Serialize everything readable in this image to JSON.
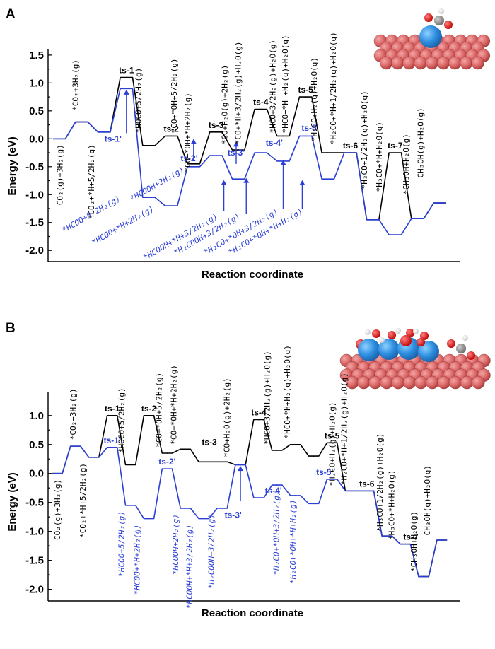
{
  "chart_data": [
    {
      "type": "line",
      "panel_label": "A",
      "xlabel": "Reaction coordinate",
      "ylabel": "Energy (eV)",
      "ylim": [
        -2.2,
        1.6
      ],
      "yticks": [
        "1.5",
        "1.0",
        "0.5",
        "0.0",
        "-0.5",
        "-1.0",
        "-1.5",
        "-2.0"
      ],
      "grid": false,
      "colors": {
        "black": "#000000",
        "blue": "#2b3fd6"
      },
      "series": [
        {
          "color": "#000000",
          "levels": [
            0.0,
            0.3,
            0.12,
            1.1,
            -0.12,
            0.05,
            -0.45,
            0.12,
            -0.2,
            0.53,
            0.05,
            0.75,
            -0.25,
            -0.25,
            -1.45,
            -0.25,
            -1.43,
            -1.15
          ]
        },
        {
          "color": "#2b3fd6",
          "levels": [
            0.0,
            0.3,
            0.12,
            0.9,
            -1.05,
            -1.2,
            -0.5,
            -0.3,
            -0.72,
            -0.25,
            -0.4,
            0.05,
            -0.72,
            -0.25,
            -1.45,
            -1.72,
            -1.43,
            -1.15
          ]
        }
      ],
      "ts_labels": [
        {
          "text": "ts-1",
          "color": "#000000",
          "x": 3,
          "y": 1.1,
          "above": true
        },
        {
          "text": "ts-2",
          "color": "#000000",
          "x": 5,
          "y": 0.05,
          "above": true
        },
        {
          "text": "ts-3",
          "color": "#000000",
          "x": 7,
          "y": 0.12,
          "above": true
        },
        {
          "text": "ts-4",
          "color": "#000000",
          "x": 9,
          "y": 0.53,
          "above": true
        },
        {
          "text": "ts-5",
          "color": "#000000",
          "x": 11,
          "y": 0.75,
          "above": true
        },
        {
          "text": "ts-6",
          "color": "#000000",
          "x": 13,
          "y": -0.25,
          "above": true
        },
        {
          "text": "ts-7",
          "color": "#000000",
          "x": 15,
          "y": -0.25,
          "above": true
        },
        {
          "text": "ts-1'",
          "color": "#2b3fd6",
          "x": 2.4,
          "y": 0.1,
          "above": false
        },
        {
          "text": "ts-2'",
          "color": "#2b3fd6",
          "x": 5.8,
          "y": -0.25,
          "above": false
        },
        {
          "text": "ts-3'",
          "color": "#2b3fd6",
          "x": 7.9,
          "y": -0.15,
          "above": false
        },
        {
          "text": "ts-4'",
          "color": "#2b3fd6",
          "x": 9.6,
          "y": -0.2,
          "above": true
        },
        {
          "text": "ts-5'",
          "color": "#2b3fd6",
          "x": 11.2,
          "y": 0.07,
          "above": true
        }
      ],
      "arrows": [
        {
          "x": 3.0,
          "from": 0.1,
          "to": 0.88
        },
        {
          "x": 6.0,
          "from": -0.4,
          "to": 0.0
        },
        {
          "x": 7.9,
          "from": -0.45,
          "to": -0.05
        },
        {
          "x": 7.35,
          "from": -1.3,
          "to": -0.74
        },
        {
          "x": 8.35,
          "from": -1.35,
          "to": -0.7
        },
        {
          "x": 10.0,
          "from": -1.25,
          "to": -0.38
        },
        {
          "x": 10.85,
          "from": -1.25,
          "to": -0.74
        }
      ],
      "species_black": [
        {
          "text": "CO₂(g)+3H₂(g)",
          "x": 0.65,
          "y": -0.1,
          "rot": -90,
          "anchor": "end"
        },
        {
          "text": "*CO₂+3H₂(g)",
          "x": 1.35,
          "y": 0.5,
          "rot": -90,
          "anchor": "start"
        },
        {
          "text": "*CO₂+*H+5/2H₂(g)",
          "x": 2.05,
          "y": -0.1,
          "rot": -90,
          "anchor": "end"
        },
        {
          "text": "*HOCO+5/2H₂(g)",
          "x": 4.15,
          "y": 0.1,
          "rot": -90,
          "anchor": "start"
        },
        {
          "text": "*CO+*OH+5/2H₂(g)",
          "x": 5.75,
          "y": 0.1,
          "rot": -90,
          "anchor": "start"
        },
        {
          "text": "*CO+*OH+*H+2H₂(g)",
          "x": 6.35,
          "y": -0.6,
          "rot": -90,
          "anchor": "start"
        },
        {
          "text": "*CO+H₂O(g)+2H₂(g)",
          "x": 8.0,
          "y": -0.1,
          "rot": -90,
          "anchor": "start"
        },
        {
          "text": "*CO+*H+3/2H₂(g)+H₂O(g)",
          "x": 8.6,
          "y": -0.1,
          "rot": -90,
          "anchor": "start"
        },
        {
          "text": "*HCO+3/2H₂(g)+H₂O(g)",
          "x": 10.15,
          "y": 0.1,
          "rot": -90,
          "anchor": "start"
        },
        {
          "text": "*HCO+*H +H₂(g)+H₂O(g)",
          "x": 10.7,
          "y": 0.1,
          "rot": -90,
          "anchor": "start"
        },
        {
          "text": "*H₂CO+H₂(g)+H₂O(g)",
          "x": 12.0,
          "y": -0.05,
          "rot": -90,
          "anchor": "start"
        },
        {
          "text": "*H₂CO+*H+1/2H₂(g)+H₂O(g)",
          "x": 12.85,
          "y": -0.1,
          "rot": -90,
          "anchor": "start"
        },
        {
          "text": "*H₃CO+1/2H₂(g)+H₂O(g)",
          "x": 14.25,
          "y": -0.9,
          "rot": -90,
          "anchor": "start"
        },
        {
          "text": "*H₃CO+*H+H₂O(g)",
          "x": 14.9,
          "y": -0.95,
          "rot": -90,
          "anchor": "start"
        },
        {
          "text": "*CH₃OH+H₂O(g)",
          "x": 16.1,
          "y": -1.0,
          "rot": -90,
          "anchor": "start"
        },
        {
          "text": "CH₃OH(g)+H₂O(g)",
          "x": 16.75,
          "y": -0.7,
          "rot": -90,
          "anchor": "start"
        }
      ],
      "species_blue": [
        {
          "text": "*HCOO+5/2H₂(g)",
          "x": 3.25,
          "y": -1.1,
          "rot": -30,
          "anchor": "end"
        },
        {
          "text": "*HCOO+*H+2H₂(g)",
          "x": 4.75,
          "y": -1.28,
          "rot": -30,
          "anchor": "end"
        },
        {
          "text": "*HCOOH+2H₂(g)",
          "x": 6.1,
          "y": -0.58,
          "rot": -30,
          "anchor": "end"
        },
        {
          "text": "*HCOOH+*H+3/2H₂(g)",
          "x": 7.6,
          "y": -1.42,
          "rot": -30,
          "anchor": "end"
        },
        {
          "text": "*H₂COOH+3/2H₂(g)",
          "x": 8.6,
          "y": -1.42,
          "rot": -30,
          "anchor": "end"
        },
        {
          "text": "*H₂CO+*OH+3/2H₂(g)",
          "x": 10.3,
          "y": -1.33,
          "rot": -30,
          "anchor": "end"
        },
        {
          "text": "*H₂CO+*OH+*H+H₂(g)",
          "x": 11.4,
          "y": -1.33,
          "rot": -30,
          "anchor": "end"
        }
      ]
    },
    {
      "type": "line",
      "panel_label": "B",
      "xlabel": "Reaction coordinate",
      "ylabel": "Energy (eV)",
      "ylim": [
        -2.2,
        1.4
      ],
      "yticks": [
        "1.0",
        "0.5",
        "0.0",
        "-0.5",
        "-1.0",
        "-1.5",
        "-2.0"
      ],
      "grid": false,
      "colors": {
        "black": "#000000",
        "blue": "#2b3fd6"
      },
      "series": [
        {
          "color": "#000000",
          "levels": [
            0.0,
            0.47,
            0.28,
            1.0,
            0.15,
            1.0,
            0.35,
            0.42,
            0.2,
            0.2,
            0.15,
            0.93,
            0.4,
            0.5,
            0.3,
            0.53,
            -0.3,
            -0.3,
            -1.08,
            -1.22,
            -1.78,
            -1.15
          ]
        },
        {
          "color": "#2b3fd6",
          "levels": [
            0.0,
            0.47,
            0.28,
            0.45,
            -0.55,
            -0.78,
            0.08,
            -0.6,
            -0.78,
            -0.6,
            0.15,
            -0.42,
            -0.2,
            -0.38,
            -0.52,
            -0.1,
            -0.3,
            -0.3,
            -1.08,
            -1.22,
            -1.78,
            -1.15
          ]
        }
      ],
      "ts_labels": [
        {
          "text": "ts-1",
          "color": "#000000",
          "x": 3,
          "y": 1.0,
          "above": true
        },
        {
          "text": "ts-2",
          "color": "#000000",
          "x": 5,
          "y": 1.0,
          "above": true
        },
        {
          "text": "ts-3",
          "color": "#000000",
          "x": 8.3,
          "y": 0.42,
          "above": true
        },
        {
          "text": "ts-4",
          "color": "#000000",
          "x": 11,
          "y": 0.93,
          "above": true
        },
        {
          "text": "ts-5",
          "color": "#000000",
          "x": 15,
          "y": 0.53,
          "above": true
        },
        {
          "text": "ts-6",
          "color": "#000000",
          "x": 16.9,
          "y": -0.3,
          "above": true
        },
        {
          "text": "ts-7",
          "color": "#000000",
          "x": 19.3,
          "y": -1.22,
          "above": true
        },
        {
          "text": "ts-1'",
          "color": "#2b3fd6",
          "x": 3,
          "y": 0.45,
          "above": true
        },
        {
          "text": "ts-2'",
          "color": "#2b3fd6",
          "x": 6,
          "y": 0.08,
          "above": true
        },
        {
          "text": "ts-3'",
          "color": "#2b3fd6",
          "x": 9.6,
          "y": -0.62,
          "above": false
        },
        {
          "text": "ts-4'",
          "color": "#2b3fd6",
          "x": 11.8,
          "y": -0.42,
          "above": true
        },
        {
          "text": "ts-5'",
          "color": "#2b3fd6",
          "x": 14.6,
          "y": -0.1,
          "above": true
        }
      ],
      "arrows": [
        {
          "x": 10.0,
          "from": -0.48,
          "to": 0.13
        }
      ],
      "species_black": [
        {
          "text": "CO₂(g)+3H₂(g)",
          "x": 0.65,
          "y": -0.1,
          "rot": -90,
          "anchor": "end"
        },
        {
          "text": "*CO₂+3H₂(g)",
          "x": 1.5,
          "y": 0.58,
          "rot": -90,
          "anchor": "start"
        },
        {
          "text": "*CO₂+*H+5/2H₂(g)",
          "x": 2.05,
          "y": 0.18,
          "rot": -90,
          "anchor": "end"
        },
        {
          "text": "*HOCO+5/2H₂(g)",
          "x": 4.15,
          "y": 0.35,
          "rot": -90,
          "anchor": "start"
        },
        {
          "text": "*CO+*OH+5/2H₂(g)",
          "x": 6.2,
          "y": 0.45,
          "rot": -90,
          "anchor": "start"
        },
        {
          "text": "*CO+*OH+*H+2H₂(g)",
          "x": 7.0,
          "y": 0.5,
          "rot": -90,
          "anchor": "start"
        },
        {
          "text": "*CO+H₂O(g)+2H₂(g)",
          "x": 9.9,
          "y": 0.28,
          "rot": -90,
          "anchor": "start"
        },
        {
          "text": "*HCO+3/2H₂(g)+H₂O(g)",
          "x": 12.1,
          "y": 0.5,
          "rot": -90,
          "anchor": "start"
        },
        {
          "text": "*HCO+*H+H₂(g)+H₂O(g)",
          "x": 13.2,
          "y": 0.6,
          "rot": -90,
          "anchor": "start"
        },
        {
          "text": "*H₂CO+H₂(g)+H₂O(g)",
          "x": 15.65,
          "y": -0.22,
          "rot": -90,
          "anchor": "start"
        },
        {
          "text": "*H₂CO+*H+1/2H₂(g)+H₂O(g)",
          "x": 16.3,
          "y": -0.2,
          "rot": -90,
          "anchor": "start"
        },
        {
          "text": "*H₃CO+1/2H₂(g)+H₂O(g)",
          "x": 18.25,
          "y": -1.0,
          "rot": -90,
          "anchor": "start"
        },
        {
          "text": "*H₃CO+*H+H₂O(g)",
          "x": 18.9,
          "y": -1.15,
          "rot": -90,
          "anchor": "start"
        },
        {
          "text": "*CH₃OH+H₂O(g)",
          "x": 20.1,
          "y": -1.7,
          "rot": -90,
          "anchor": "start"
        },
        {
          "text": "CH₃OH(g)+H₂O(g)",
          "x": 20.85,
          "y": -1.07,
          "rot": -90,
          "anchor": "start"
        }
      ],
      "species_blue": [
        {
          "text": "*HCOO+5/2H₂(g)",
          "x": 4.15,
          "y": -0.65,
          "rot": -90,
          "anchor": "end"
        },
        {
          "text": "*HCOO+*H+2H₂(g)",
          "x": 5.0,
          "y": -0.88,
          "rot": -90,
          "anchor": "end"
        },
        {
          "text": "*HCOOH+2H₂(g)",
          "x": 7.1,
          "y": -0.7,
          "rot": -90,
          "anchor": "end"
        },
        {
          "text": "*HCOOH+*H+3/2H₂(g)",
          "x": 7.85,
          "y": -0.88,
          "rot": -90,
          "anchor": "end"
        },
        {
          "text": "*H₂COOH+3/2H₂(g)",
          "x": 9.05,
          "y": -0.7,
          "rot": -90,
          "anchor": "end"
        },
        {
          "text": "*H₂CO+*OH+3/2H₂(g)",
          "x": 12.6,
          "y": -0.3,
          "rot": -90,
          "anchor": "end"
        },
        {
          "text": "*H₂CO+*OH+*H+H₂(g)",
          "x": 13.5,
          "y": -0.45,
          "rot": -90,
          "anchor": "end"
        }
      ]
    }
  ]
}
